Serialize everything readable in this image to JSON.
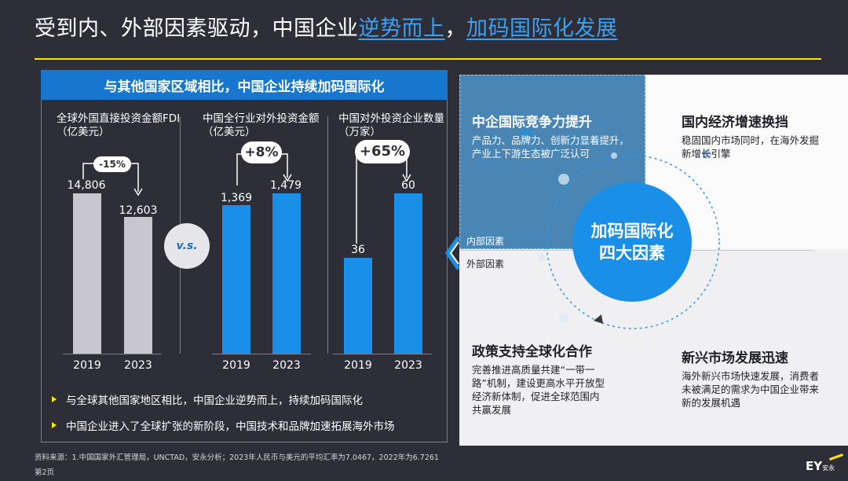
{
  "title": {
    "part1": "受到内、外部因素驱动，中国企业",
    "highlight1": "逆势而上",
    "comma": "，",
    "highlight2": "加码国际化发展"
  },
  "left_panel": {
    "banner": "与其他国家区域相比，中国企业持续加码国际化",
    "vs_label": "v.s.",
    "bullets": [
      "与全球其他国家地区相比，中国企业逆势而上，持续加码国际化",
      "中国企业进入了全球扩张的新阶段，中国技术和品牌加速拓展海外市场"
    ]
  },
  "chart_data": [
    {
      "type": "bar",
      "title_line1": "全球外国直接投资金额FDI",
      "title_line2": "（亿美元）",
      "categories": [
        "2019",
        "2023"
      ],
      "values": [
        14806,
        12603
      ],
      "value_labels": [
        "14,806",
        "12,603"
      ],
      "change": "-15%",
      "bar_color": "#c7c7cd"
    },
    {
      "type": "bar",
      "title_line1": "中国全行业对外投资金额",
      "title_line2": "（亿美元）",
      "categories": [
        "2019",
        "2023"
      ],
      "values": [
        1369,
        1479
      ],
      "value_labels": [
        "1,369",
        "1,479"
      ],
      "change": "+8%",
      "bar_color": "#1a8fe8"
    },
    {
      "type": "bar",
      "title_line1": "中国对外投资企业数量",
      "title_line2": "（万家）",
      "categories": [
        "2019",
        "2023"
      ],
      "values": [
        36,
        60
      ],
      "value_labels": [
        "36",
        "60"
      ],
      "change": "+65%",
      "bar_color": "#1a8fe8"
    }
  ],
  "right_panel": {
    "q1": {
      "title": "中企国际竞争力提升",
      "text": "产品力、品牌力、创新力显着提升，产业上下游生态被广泛认可"
    },
    "q2": {
      "title": "国内经济增速换挡",
      "text": "稳固国内市场同时，在海外发掘新增长引擎"
    },
    "q3": {
      "title": "政策支持全球化合作",
      "text": "完善推进高质量共建“一带一路”机制，建设更高水平开放型经济新体制，促进全球范围内共赢发展"
    },
    "q4": {
      "title": "新兴市场发展迅速",
      "text": "海外新兴市场快速发展，消费者未被满足的需求为中国企业带来新的发展机遇"
    },
    "internal_label": "内部因素",
    "external_label": "外部因素",
    "center_line1": "加码国际化",
    "center_line2": "四大因素"
  },
  "footer": {
    "source": "资料来源：1.中国国家外汇管理局，UNCTAD，安永分析；2023年人民币与美元的平均汇率为7.0467，2022年为6.7261",
    "page": "第2页",
    "logo": "EY",
    "logo_sub": "安永"
  },
  "colors": {
    "accent_yellow": "#ffe600",
    "accent_blue": "#1a8fe8",
    "background": "#2e2e38"
  }
}
